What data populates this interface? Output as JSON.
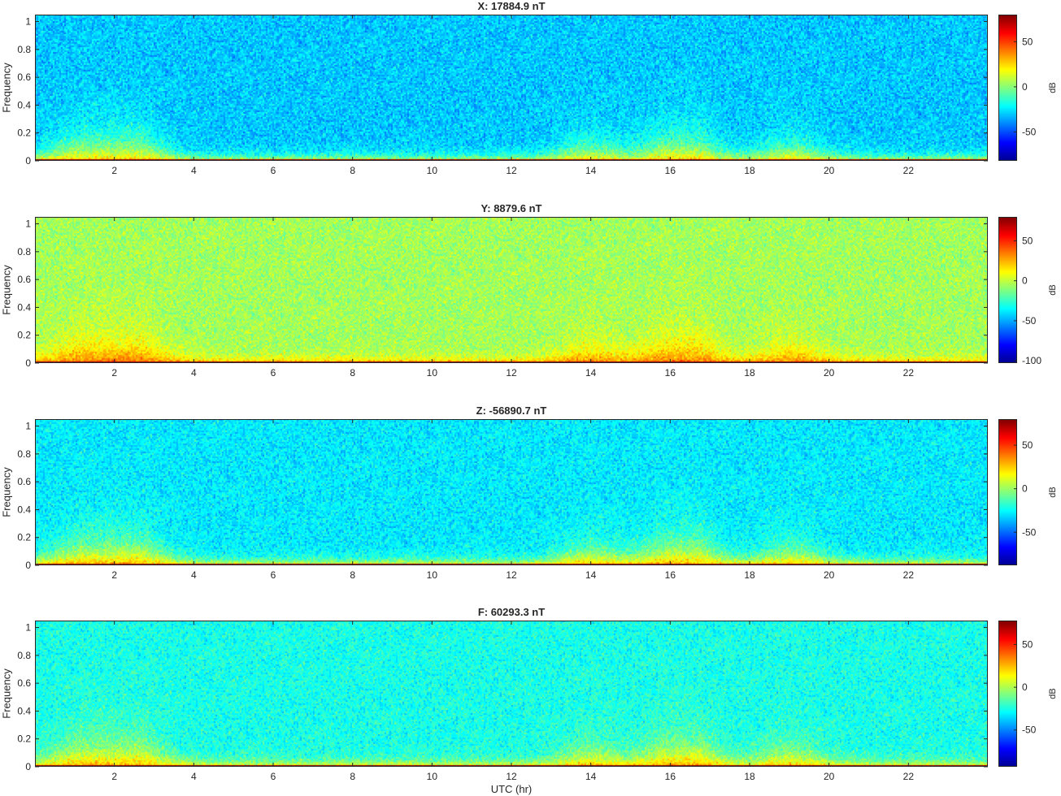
{
  "figure": {
    "xlabel": "UTC (hr)",
    "colormap": "jet",
    "colormap_stops": [
      "#00008f",
      "#0000ff",
      "#00ffff",
      "#ffff00",
      "#ff0000",
      "#800000"
    ]
  },
  "chart_data": [
    {
      "type": "heatmap",
      "title": "X: 17884.9 nT",
      "ylabel": "Frequency",
      "colorbar_label": "dB",
      "xlim": [
        0,
        24
      ],
      "ylim": [
        0,
        1.05
      ],
      "xticks": [
        2,
        4,
        6,
        8,
        10,
        12,
        14,
        16,
        18,
        20,
        22
      ],
      "yticks": [
        0,
        0.2,
        0.4,
        0.6,
        0.8,
        1
      ],
      "clim": [
        -82,
        80
      ],
      "colorbar_ticks": [
        -50,
        0,
        50
      ],
      "background_db": -30,
      "low_freq_band_db": 20,
      "dc_row_db": 75,
      "activity_hours": [
        1,
        2,
        2.5,
        14,
        16,
        16.5,
        19
      ]
    },
    {
      "type": "heatmap",
      "title": "Y: 8879.6 nT",
      "ylabel": "Frequency",
      "colorbar_label": "dB",
      "xlim": [
        0,
        24
      ],
      "ylim": [
        0,
        1.05
      ],
      "xticks": [
        2,
        4,
        6,
        8,
        10,
        12,
        14,
        16,
        18,
        20,
        22
      ],
      "yticks": [
        0,
        0.2,
        0.4,
        0.6,
        0.8,
        1
      ],
      "clim": [
        -103,
        80
      ],
      "colorbar_ticks": [
        -100,
        -50,
        0,
        50
      ],
      "background_db": -5,
      "low_freq_band_db": 30,
      "dc_row_db": 75,
      "activity_hours": [
        1,
        2,
        2.5,
        14,
        16,
        16.5,
        19
      ]
    },
    {
      "type": "heatmap",
      "title": "Z: -56890.7 nT",
      "ylabel": "Frequency",
      "colorbar_label": "dB",
      "xlim": [
        0,
        24
      ],
      "ylim": [
        0,
        1.05
      ],
      "xticks": [
        2,
        4,
        6,
        8,
        10,
        12,
        14,
        16,
        18,
        20,
        22
      ],
      "yticks": [
        0,
        0.2,
        0.4,
        0.6,
        0.8,
        1
      ],
      "clim": [
        -88,
        80
      ],
      "colorbar_ticks": [
        -50,
        0,
        50
      ],
      "background_db": -28,
      "low_freq_band_db": 25,
      "dc_row_db": 75,
      "activity_hours": [
        1,
        2,
        2.5,
        14,
        16,
        16.5,
        19
      ]
    },
    {
      "type": "heatmap",
      "title": "F: 60293.3 nT",
      "ylabel": "Frequency",
      "colorbar_label": "dB",
      "xlim": [
        0,
        24
      ],
      "ylim": [
        0,
        1.05
      ],
      "xticks": [
        2,
        4,
        6,
        8,
        10,
        12,
        14,
        16,
        18,
        20,
        22
      ],
      "yticks": [
        0,
        0.2,
        0.4,
        0.6,
        0.8,
        1
      ],
      "clim": [
        -93,
        78
      ],
      "colorbar_ticks": [
        -50,
        0,
        50
      ],
      "background_db": -25,
      "low_freq_band_db": 22,
      "dc_row_db": 75,
      "activity_hours": [
        1,
        2,
        2.5,
        14,
        16,
        16.5,
        19
      ]
    }
  ]
}
